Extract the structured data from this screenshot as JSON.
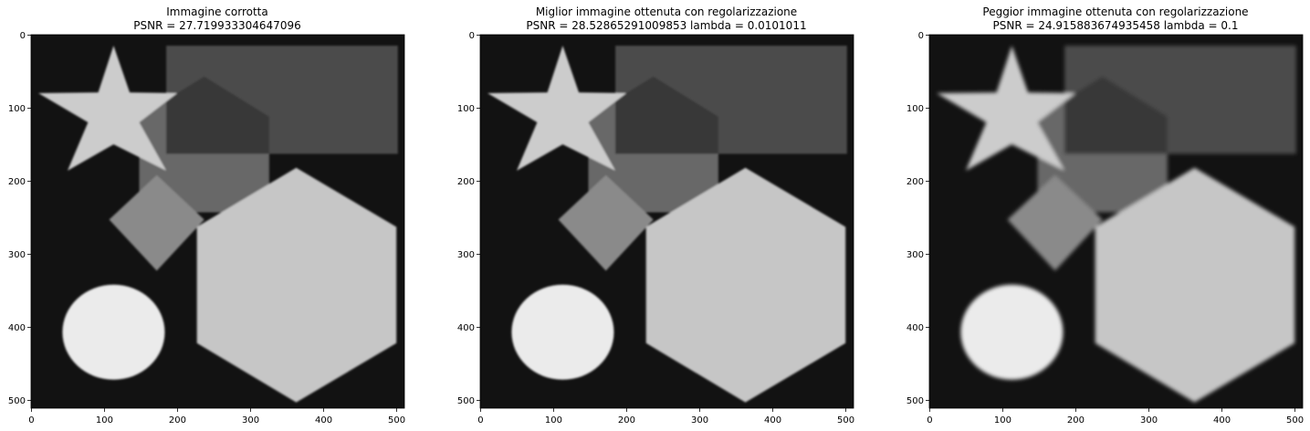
{
  "panels": [
    {
      "title_line1": "Immagine corrotta",
      "title_line2": "PSNR = 27.719933304647096"
    },
    {
      "title_line1": "Miglior immagine ottenuta con regolarizzazione",
      "title_line2": "PSNR = 28.52865291009853 lambda = 0.0101011"
    },
    {
      "title_line1": "Peggior immagine ottenuta con regolarizzazione",
      "title_line2": "PSNR = 24.915883674935458 lambda = 0.1"
    }
  ],
  "axes": {
    "xlim": [
      0,
      511
    ],
    "ylim": [
      511,
      0
    ],
    "xticks": [
      0,
      100,
      200,
      300,
      400,
      500
    ],
    "yticks": [
      0,
      100,
      200,
      300,
      400,
      500
    ],
    "xtick_labels": [
      "0",
      "100",
      "200",
      "300",
      "400",
      "500"
    ],
    "ytick_labels": [
      "0",
      "100",
      "200",
      "300",
      "400",
      "500"
    ]
  },
  "colors": {
    "background": "#121212",
    "rectangle": "#4c4c4c",
    "pentagon": "#676767",
    "pentagon_rect_overlap": "#373737",
    "diamond": "#8a8a8a",
    "star": "#cccccc",
    "hexagon": "#c6c6c6",
    "circle": "#ebebeb"
  }
}
